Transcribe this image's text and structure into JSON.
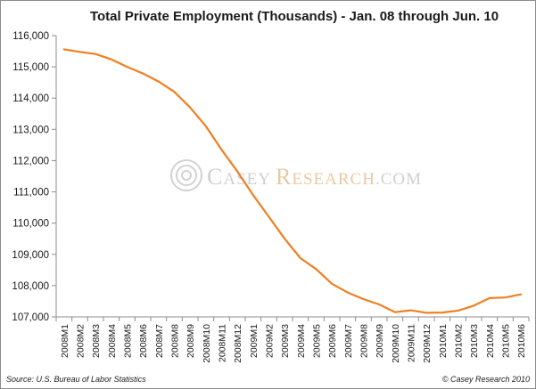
{
  "chart_data": {
    "type": "line",
    "title": "Total Private Employment (Thousands) - Jan. 08 through Jun. 10",
    "xlabel": "",
    "ylabel": "",
    "ylim": [
      107000,
      116000
    ],
    "y_ticks": [
      107000,
      108000,
      109000,
      110000,
      111000,
      112000,
      113000,
      114000,
      115000,
      116000
    ],
    "y_tick_labels": [
      "107,000",
      "108,000",
      "109,000",
      "110,000",
      "111,000",
      "112,000",
      "113,000",
      "114,000",
      "115,000",
      "116,000"
    ],
    "grid": false,
    "legend": "none",
    "categories": [
      "2008M1",
      "2008M2",
      "2008M3",
      "2008M4",
      "2008M5",
      "2008M6",
      "2008M7",
      "2008M8",
      "2008M9",
      "2008M10",
      "2008M11",
      "2008M12",
      "2009M1",
      "2009M2",
      "2009M3",
      "2009M4",
      "2009M5",
      "2009M6",
      "2009M7",
      "2009M8",
      "2009M9",
      "2009M10",
      "2009M11",
      "2009M12",
      "2010M1",
      "2010M2",
      "2010M3",
      "2010M4",
      "2010M5",
      "2010M6"
    ],
    "series": [
      {
        "color": "#f07f20",
        "values": [
          115560,
          115480,
          115410,
          115240,
          115000,
          114790,
          114530,
          114200,
          113700,
          113100,
          112350,
          111650,
          110900,
          110200,
          109500,
          108880,
          108530,
          108060,
          107780,
          107570,
          107400,
          107150,
          107210,
          107130,
          107140,
          107200,
          107360,
          107600,
          107620,
          107720
        ]
      }
    ]
  },
  "watermark": {
    "brand": "CASEY",
    "brand2": "RESEARCH",
    "suffix": ".COM"
  },
  "footer": {
    "source": "Source: U.S. Bureau of Labor Statistics",
    "copyright": "© Casey Research 2010"
  },
  "colors": {
    "axis": "#8c8c8c",
    "line": "#f07f20",
    "watermark": "#cfcfcf"
  }
}
